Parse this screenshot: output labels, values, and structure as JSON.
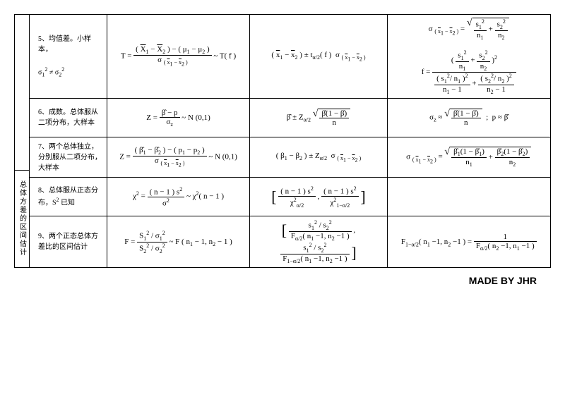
{
  "side_label": "总体方差的区间估计",
  "footer": "MADE BY JHR",
  "rows": {
    "r5": {
      "desc": "5、均值差。小样本，\nσ₁² ≠ σ₂²",
      "f1": "T = \\frac{(\\bar{X}_1 - \\bar{X}_2) - (\\mu_1 - \\mu_2)}{\\sigma_{(\\bar{x}_1-\\bar{x}_2)}} \\sim T(f)",
      "f2": "(\\bar{x}_1 - \\bar{x}_2) \\pm t_{\\alpha/2}(f)\\ \\sigma_{(\\bar{x}_1-\\bar{x}_2)}",
      "f3_a": "\\sigma_{(\\bar{x}_1-\\bar{x}_2)} = \\sqrt{\\frac{s_1^2}{n_1}+\\frac{s_2^2}{n_2}}",
      "f3_b": "f = \\frac{(\\frac{s_1^2}{n_1}+\\frac{s_2^2}{n_2})^2}{\\frac{(s_1^2/n_1)^2}{n_1-1}+\\frac{(s_2^2/n_2)^2}{n_2-1}}"
    },
    "r6": {
      "desc": "6、成数。总体服从二项分布，大样本",
      "f1": "Z = \\frac{\\hat\\beta - p}{\\sigma_z} \\sim N(0,1)",
      "f2": "\\hat\\beta \\pm Z_{\\alpha/2}\\sqrt{\\frac{\\hat\\beta(1-\\hat\\beta)}{n}}",
      "f3": "\\sigma_z \\approx \\sqrt{\\frac{\\hat\\beta(1-\\hat\\beta)}{n}} ; p \\approx \\hat\\beta"
    },
    "r7": {
      "desc": "7、两个总体独立，分别服从二项分布，大样本",
      "f1": "Z = \\frac{(\\hat\\beta_1-\\hat\\beta_2)-(p_1-p_2)}{\\sigma_{(\\bar{x}_1-\\bar{x}_2)}} \\sim N(0,1)",
      "f2": "(\\beta_1-\\beta_2)\\pm Z_{\\alpha/2}\\ \\sigma_{(\\bar{x}_1-\\bar{x}_2)}",
      "f3": "\\sigma_{(\\bar{x}_1-\\bar{x}_2)} = \\sqrt{\\frac{\\hat\\beta_1(1-\\hat\\beta_1)}{n_1}+\\frac{\\hat\\beta_2(1-\\hat\\beta_2)}{n_2}}"
    },
    "r8": {
      "desc": "8、总体服从正态分布，S² 已知",
      "f1": "\\chi^2 = \\frac{(n-1)s^2}{\\sigma^2} \\sim \\chi^2(n-1)",
      "f2": "[\\frac{(n-1)s^2}{\\chi^2_{\\alpha/2}},\\ \\frac{(n-1)s^2}{\\chi^2_{1-\\alpha/2}}]",
      "f3": ""
    },
    "r9": {
      "desc": "9、两个正态总体方差比的区间估计",
      "f1": "F = \\frac{S_1^2/\\sigma_1^2}{S_2^2/\\sigma_2^2} \\sim F(n_1-1,n_2-1)",
      "f2": "[\\frac{s_1^2/s_2^2}{F_{\\alpha/2}(n_1-1,n_2-1)},\\ \\frac{s_1^2/s_2^2}{F_{1-\\alpha/2}(n_1-1,n_2-1)}]",
      "f3": "F_{1-\\alpha/2}(n_1-1,n_2-1)=\\frac{1}{F_{\\alpha/2}(n_2-1,n_1-1)}"
    }
  }
}
